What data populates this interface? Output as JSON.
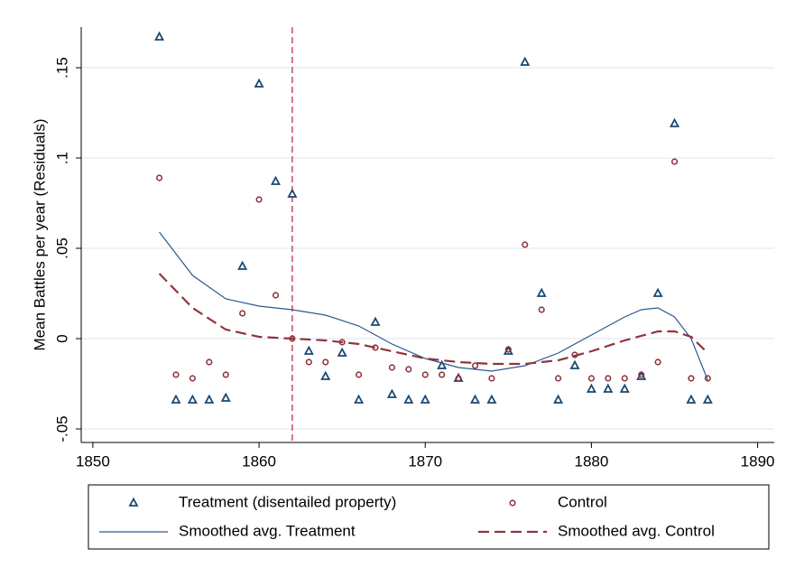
{
  "chart_data": {
    "type": "scatter",
    "y_label": "Mean Battles per year (Residuals)",
    "xlim": [
      1849.3,
      1891
    ],
    "ylim": [
      -0.0575,
      0.1725
    ],
    "xticks": [
      1850,
      1860,
      1870,
      1880,
      1890
    ],
    "yticks": [
      {
        "value": -0.05,
        "label": "-.05"
      },
      0,
      {
        "value": 0.05,
        "label": ".05"
      },
      {
        "value": 0.1,
        "label": ".1"
      },
      {
        "value": 0.15,
        "label": ".15"
      }
    ],
    "grid": true,
    "vline": 1862,
    "vline_color": "#c0304a",
    "legend_position": "bottom",
    "series": [
      {
        "name": "Treatment (disentailed property)",
        "kind": "triangle",
        "color": "#1a476f",
        "x": [
          1854,
          1855,
          1856,
          1857,
          1858,
          1859,
          1860,
          1861,
          1862,
          1863,
          1864,
          1865,
          1866,
          1867,
          1868,
          1869,
          1870,
          1871,
          1872,
          1873,
          1874,
          1875,
          1876,
          1877,
          1878,
          1879,
          1880,
          1881,
          1882,
          1883,
          1884,
          1885,
          1886,
          1887
        ],
        "values": [
          0.167,
          -0.034,
          -0.034,
          -0.034,
          -0.033,
          0.04,
          0.141,
          0.087,
          0.08,
          -0.007,
          -0.021,
          -0.008,
          -0.034,
          0.009,
          -0.031,
          -0.034,
          -0.034,
          -0.015,
          -0.022,
          -0.034,
          -0.034,
          -0.007,
          0.153,
          0.025,
          -0.034,
          -0.015,
          -0.028,
          -0.028,
          -0.028,
          -0.021,
          0.025,
          0.119,
          -0.034,
          -0.034
        ]
      },
      {
        "name": "Control",
        "kind": "circle",
        "color": "#90353b",
        "x": [
          1854,
          1855,
          1856,
          1857,
          1858,
          1859,
          1860,
          1861,
          1862,
          1863,
          1864,
          1865,
          1866,
          1867,
          1868,
          1869,
          1870,
          1871,
          1872,
          1873,
          1874,
          1875,
          1876,
          1877,
          1878,
          1879,
          1880,
          1881,
          1882,
          1883,
          1884,
          1885,
          1886,
          1887
        ],
        "values": [
          0.089,
          -0.02,
          -0.022,
          -0.013,
          -0.02,
          0.014,
          0.077,
          0.024,
          0.0,
          -0.013,
          -0.013,
          -0.002,
          -0.02,
          -0.005,
          -0.016,
          -0.017,
          -0.02,
          -0.02,
          -0.022,
          -0.015,
          -0.022,
          -0.006,
          0.052,
          0.016,
          -0.022,
          -0.009,
          -0.022,
          -0.022,
          -0.022,
          -0.02,
          -0.013,
          0.098,
          -0.022,
          -0.022
        ]
      },
      {
        "name": "Smoothed avg. Treatment",
        "kind": "line",
        "dash": false,
        "color": "#2a5a8f",
        "x": [
          1854,
          1856,
          1858,
          1860,
          1862,
          1864,
          1866,
          1868,
          1870,
          1872,
          1874,
          1876,
          1878,
          1880,
          1882,
          1883,
          1884,
          1885,
          1886,
          1887
        ],
        "values": [
          0.059,
          0.035,
          0.022,
          0.018,
          0.016,
          0.013,
          0.007,
          -0.003,
          -0.011,
          -0.016,
          -0.018,
          -0.015,
          -0.008,
          0.002,
          0.012,
          0.016,
          0.017,
          0.012,
          0.0,
          -0.023
        ]
      },
      {
        "name": "Smoothed avg. Control",
        "kind": "line",
        "dash": true,
        "color": "#90353b",
        "x": [
          1854,
          1856,
          1858,
          1860,
          1862,
          1864,
          1866,
          1868,
          1870,
          1872,
          1874,
          1876,
          1878,
          1880,
          1882,
          1884,
          1885,
          1886,
          1887
        ],
        "values": [
          0.036,
          0.017,
          0.005,
          0.001,
          0.0,
          -0.001,
          -0.003,
          -0.007,
          -0.011,
          -0.013,
          -0.014,
          -0.014,
          -0.012,
          -0.007,
          -0.001,
          0.004,
          0.004,
          0.001,
          -0.008
        ]
      }
    ]
  }
}
